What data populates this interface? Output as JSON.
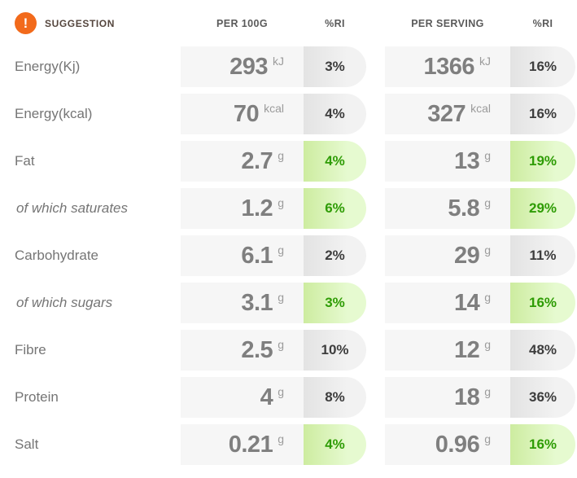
{
  "header": {
    "suggestion": "SUGGESTION",
    "warning_icon_glyph": "!",
    "columns": [
      "PER 100G",
      "%RI",
      "PER SERVING",
      "%RI"
    ]
  },
  "colors": {
    "accent_orange": "#f26a1b",
    "green_ri_text": "#2e9c05",
    "green_pill_from": "#cdeca0",
    "green_pill_to": "#e6fad0",
    "gray_pill_from": "#e3e3e3",
    "gray_pill_to": "#f2f2f2",
    "value_cell_bg": "#f6f6f6"
  },
  "table": {
    "rows": [
      {
        "label": "Energy(Kj)",
        "indent": false,
        "highlight": false,
        "per_100g": {
          "value": "293",
          "unit": "kJ",
          "ri": "3%"
        },
        "per_serving": {
          "value": "1366",
          "unit": "kJ",
          "ri": "16%"
        }
      },
      {
        "label": "Energy(kcal)",
        "indent": false,
        "highlight": false,
        "per_100g": {
          "value": "70",
          "unit": "kcal",
          "ri": "4%"
        },
        "per_serving": {
          "value": "327",
          "unit": "kcal",
          "ri": "16%"
        }
      },
      {
        "label": "Fat",
        "indent": false,
        "highlight": true,
        "per_100g": {
          "value": "2.7",
          "unit": "g",
          "ri": "4%"
        },
        "per_serving": {
          "value": "13",
          "unit": "g",
          "ri": "19%"
        }
      },
      {
        "label": "of which saturates",
        "indent": true,
        "highlight": true,
        "per_100g": {
          "value": "1.2",
          "unit": "g",
          "ri": "6%"
        },
        "per_serving": {
          "value": "5.8",
          "unit": "g",
          "ri": "29%"
        }
      },
      {
        "label": "Carbohydrate",
        "indent": false,
        "highlight": false,
        "per_100g": {
          "value": "6.1",
          "unit": "g",
          "ri": "2%"
        },
        "per_serving": {
          "value": "29",
          "unit": "g",
          "ri": "11%"
        }
      },
      {
        "label": "of which sugars",
        "indent": true,
        "highlight": true,
        "per_100g": {
          "value": "3.1",
          "unit": "g",
          "ri": "3%"
        },
        "per_serving": {
          "value": "14",
          "unit": "g",
          "ri": "16%"
        }
      },
      {
        "label": "Fibre",
        "indent": false,
        "highlight": false,
        "per_100g": {
          "value": "2.5",
          "unit": "g",
          "ri": "10%"
        },
        "per_serving": {
          "value": "12",
          "unit": "g",
          "ri": "48%"
        }
      },
      {
        "label": "Protein",
        "indent": false,
        "highlight": false,
        "per_100g": {
          "value": "4",
          "unit": "g",
          "ri": "8%"
        },
        "per_serving": {
          "value": "18",
          "unit": "g",
          "ri": "36%"
        }
      },
      {
        "label": "Salt",
        "indent": false,
        "highlight": true,
        "per_100g": {
          "value": "0.21",
          "unit": "g",
          "ri": "4%"
        },
        "per_serving": {
          "value": "0.96",
          "unit": "g",
          "ri": "16%"
        }
      }
    ]
  }
}
